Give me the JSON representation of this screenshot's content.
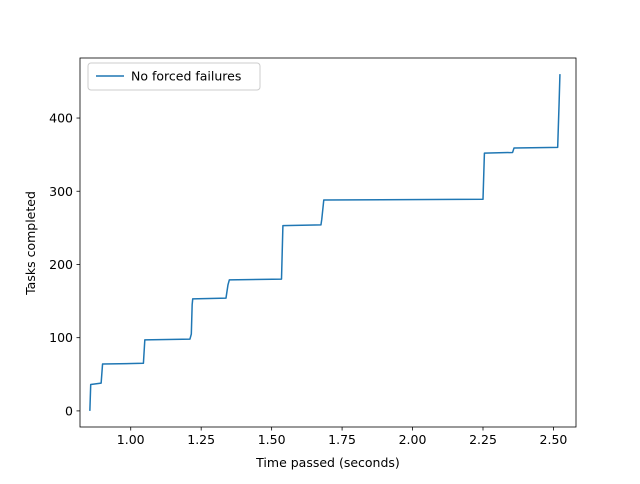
{
  "chart_data": {
    "type": "line",
    "xlabel": "Time passed (seconds)",
    "ylabel": "Tasks completed",
    "xlim": [
      0.82,
      2.58
    ],
    "ylim": [
      -22,
      482
    ],
    "xticks": [
      1.0,
      1.25,
      1.5,
      1.75,
      2.0,
      2.25,
      2.5
    ],
    "xtick_labels": [
      "1.00",
      "1.25",
      "1.50",
      "1.75",
      "2.00",
      "2.25",
      "2.50"
    ],
    "yticks": [
      0,
      100,
      200,
      300,
      400
    ],
    "ytick_labels": [
      "0",
      "100",
      "200",
      "300",
      "400"
    ],
    "grid": false,
    "legend_position": "top-left",
    "series": [
      {
        "name": "No forced failures",
        "color": "#1f77b4",
        "x": [
          0.855,
          0.858,
          0.895,
          0.9,
          1.045,
          1.05,
          1.21,
          1.215,
          1.218,
          1.22,
          1.338,
          1.345,
          1.35,
          1.535,
          1.54,
          1.675,
          1.678,
          1.685,
          2.25,
          2.255,
          2.355,
          2.36,
          2.515,
          2.52,
          2.523
        ],
        "y": [
          0,
          36,
          38,
          64,
          65,
          97,
          98,
          105,
          145,
          153,
          154,
          172,
          179,
          180,
          253,
          254,
          262,
          288,
          289,
          352,
          353,
          359,
          360,
          420,
          460
        ]
      }
    ]
  }
}
